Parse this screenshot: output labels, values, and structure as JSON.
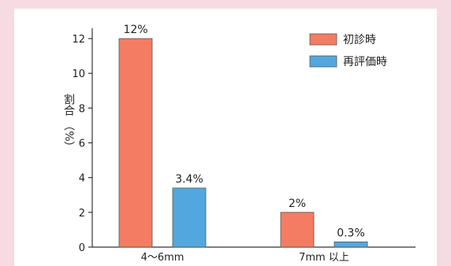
{
  "chart_data": {
    "type": "bar",
    "title": "",
    "xlabel": "",
    "ylabel": "割合（%）",
    "ylabel_text": "割合",
    "ylabel_paren": "（%）",
    "ylim": [
      0,
      12.5
    ],
    "yticks": [
      0,
      2,
      4,
      6,
      8,
      10,
      12
    ],
    "grid": false,
    "legend_position": "top-right",
    "categories": [
      "4〜6mm",
      "7mm 以上"
    ],
    "series": [
      {
        "name": "初診時",
        "values": [
          12,
          2
        ],
        "labels": [
          "12%",
          "2%"
        ],
        "color": "#f47c62"
      },
      {
        "name": "再評価時",
        "values": [
          3.4,
          0.3
        ],
        "labels": [
          "3.4%",
          "0.3%"
        ],
        "color": "#52a8de"
      }
    ]
  }
}
